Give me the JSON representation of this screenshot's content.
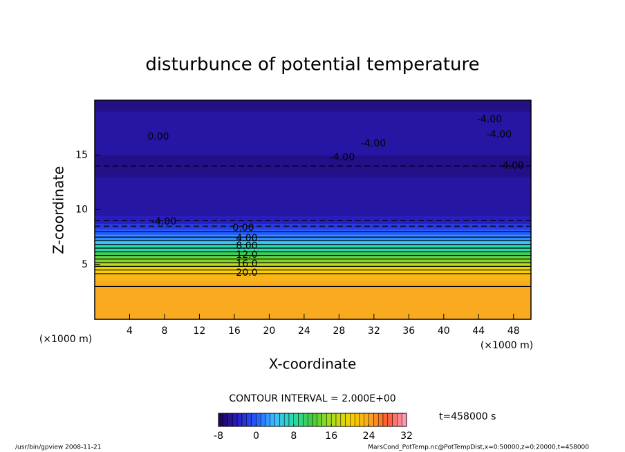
{
  "chart_data": {
    "type": "contour",
    "title": "disturbunce of potential temperature",
    "xlabel": "X-coordinate",
    "ylabel": "Z-coordinate",
    "x_unit_label": "(×1000 m)",
    "y_unit_label": "(×1000 m)",
    "xlim": [
      0,
      50
    ],
    "ylim": [
      0,
      20
    ],
    "xticks": [
      4,
      8,
      12,
      16,
      20,
      24,
      28,
      32,
      36,
      40,
      44,
      48
    ],
    "yticks": [
      5,
      10,
      15
    ],
    "profile": {
      "z": [
        0,
        1,
        2,
        3,
        4,
        4.5,
        5,
        5.5,
        6,
        6.5,
        7,
        7.5,
        8,
        8.5,
        9,
        10,
        12,
        14,
        16,
        18,
        20
      ],
      "values": [
        24,
        24,
        24,
        24,
        23,
        20,
        17,
        14,
        11,
        8,
        5,
        2,
        0,
        -2,
        -4,
        -5,
        -5,
        -6,
        -5,
        -5,
        -6
      ]
    },
    "contour_labels": [
      "0.00",
      "-4.00",
      "-4.00",
      "-4.00",
      "-4.00",
      "-4.00",
      "-4.00",
      "0.00",
      "4.00",
      "8.00",
      "12.0",
      "16.0",
      "20.0"
    ],
    "contour_interval_label": "CONTOUR INTERVAL = 2.000E+00",
    "clim": [
      -8,
      32
    ],
    "cticks": [
      -8,
      0,
      8,
      16,
      24,
      32
    ],
    "time_label": "t=458000 s",
    "footer_left": "/usr/bin/gpview  2008-11-21",
    "footer_right": "MarsCond_PotTemp.nc@PotTempDist,x=0:50000,z=0:20000,t=458000"
  }
}
